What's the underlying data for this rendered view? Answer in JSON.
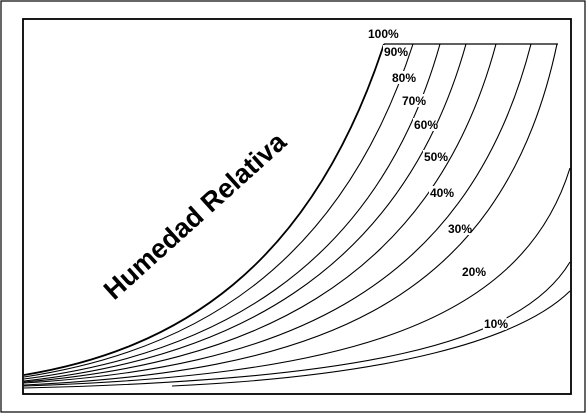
{
  "chart_data": {
    "type": "line",
    "title": "Humedad Relativa",
    "xlabel": "",
    "ylabel": "",
    "grid": false,
    "series": [
      {
        "name": "100%",
        "label": "100%"
      },
      {
        "name": "90%",
        "label": "90%"
      },
      {
        "name": "80%",
        "label": "80%"
      },
      {
        "name": "70%",
        "label": "70%"
      },
      {
        "name": "60%",
        "label": "60%"
      },
      {
        "name": "50%",
        "label": "50%"
      },
      {
        "name": "40%",
        "label": "40%"
      },
      {
        "name": "30%",
        "label": "30%"
      },
      {
        "name": "20%",
        "label": "20%"
      },
      {
        "name": "10%",
        "label": "10%"
      }
    ]
  },
  "colors": {
    "line": "#000000",
    "background": "#ffffff",
    "frame": "#000000"
  }
}
